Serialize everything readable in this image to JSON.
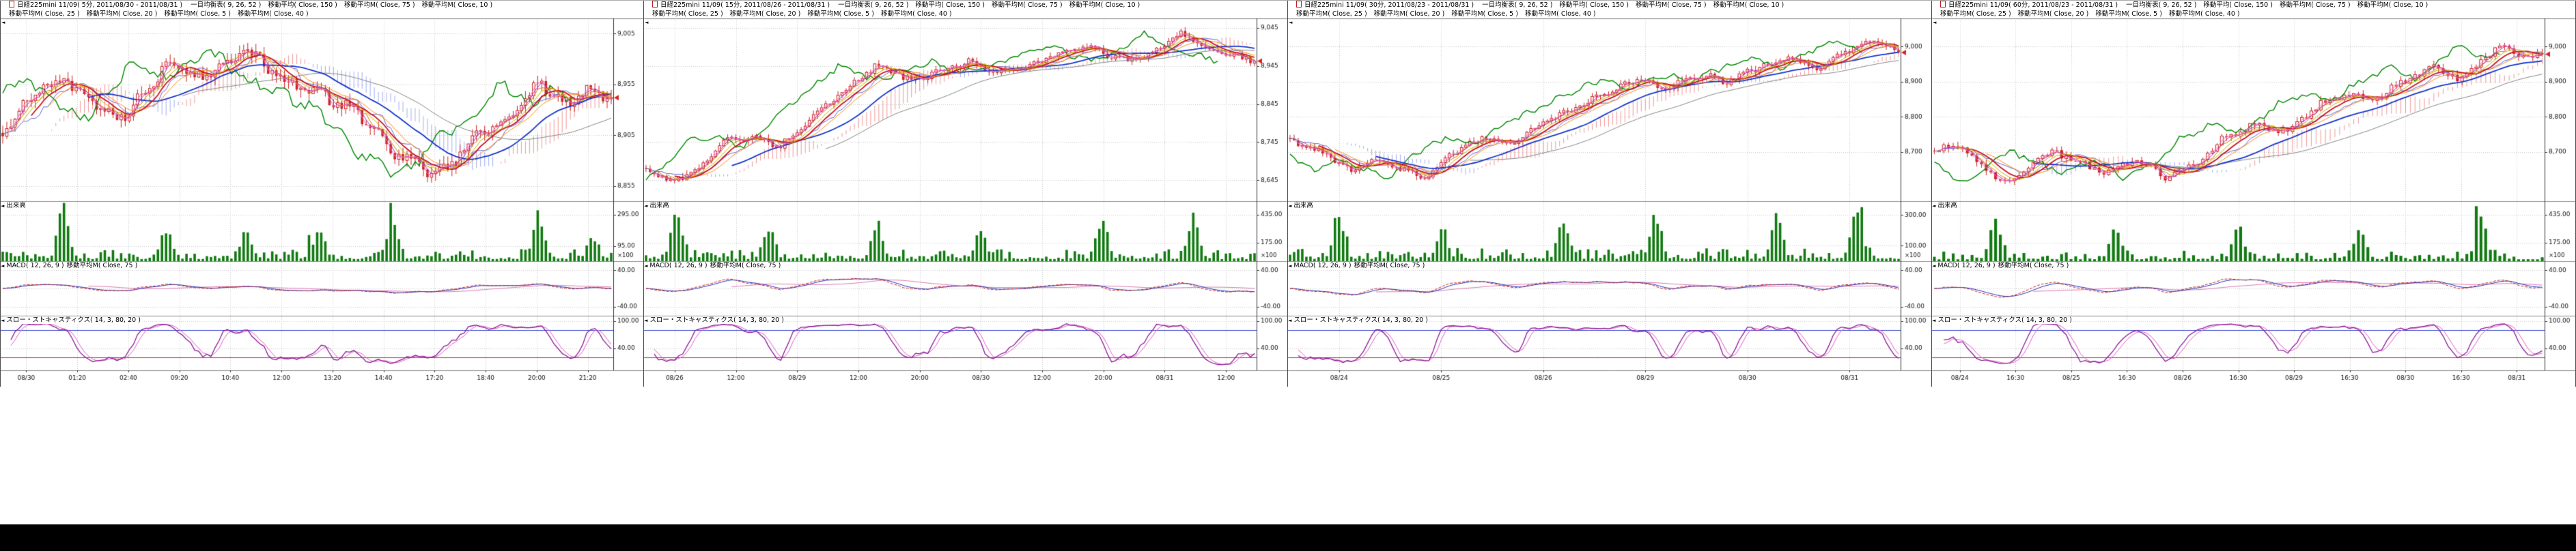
{
  "colors": {
    "up": "#cc2222",
    "down": "#cc2222",
    "up_fill": "#ffffff",
    "volume": "#117a11",
    "grid": "#c8c8c8",
    "axis": "#333333",
    "pane_border": "#8a8a8a",
    "cloud_up": "rgba(225,70,70,0.55)",
    "cloud_down": "rgba(90,110,225,0.55)",
    "chikou": "#008800",
    "tenkan": "#d08000",
    "kijun": "#6868d8",
    "ma": {
      "150": "#888888",
      "75": "#1535cc",
      "40": "#ff8c1a",
      "25": "#cc1122",
      "20": "#c8b400",
      "10": "#b030c0",
      "5": "#ff70b8"
    },
    "macd": "#cc2222",
    "macd_signal": "#2233bb",
    "macd_ma": "#dd7ab4",
    "stoch_k": "#8a1a9a",
    "stoch_d": "#e060c0",
    "stoch_upper": "#3344cc",
    "stoch_lower": "#cc3333",
    "marker": "#dd2222"
  },
  "panels": [
    {
      "title": "日経225mini 11/09( 5分, 2011/08/30 - 2011/08/31 )",
      "legend1": [
        "一目均衡表( 9, 26, 52 )",
        "移動平均( Close, 150 )",
        "移動平均M( Close, 75 )",
        "移動平均M( Close, 10 )"
      ],
      "legend2": [
        "移動平均M( Close, 25 )",
        "移動平均M( Close, 20 )",
        "移動平均M( Close, 5 )",
        "移動平均M( Close, 40 )"
      ],
      "volume_label": "出来高",
      "macd_label": "MACD( 12, 26, 9 )",
      "macd_label2": "移動平均M( Close, 75 )",
      "stoch_label": "スロー・ストキャスティクス( 14, 3, 80, 20 )"
    },
    {
      "title": "日経225mini 11/09( 15分, 2011/08/26 - 2011/08/31 )",
      "legend1": [
        "一目均衡表( 9, 26, 52 )",
        "移動平均( Close, 150 )",
        "移動平均M( Close, 75 )",
        "移動平均M( Close, 10 )"
      ],
      "legend2": [
        "移動平均M( Close, 25 )",
        "移動平均M( Close, 20 )",
        "移動平均M( Close, 5 )",
        "移動平均M( Close, 40 )"
      ],
      "volume_label": "出来高",
      "macd_label": "MACD( 12, 26, 9 )",
      "macd_label2": "移動平均M( Close, 75 )",
      "stoch_label": "スロー・ストキャスティクス( 14, 3, 80, 20 )"
    },
    {
      "title": "日経225mini 11/09( 30分, 2011/08/23 - 2011/08/31 )",
      "legend1": [
        "一目均衡表( 9, 26, 52 )",
        "移動平均( Close, 150 )",
        "移動平均M( Close, 75 )",
        "移動平均M( Close, 10 )"
      ],
      "legend2": [
        "移動平均M( Close, 25 )",
        "移動平均M( Close, 20 )",
        "移動平均M( Close, 5 )",
        "移動平均M( Close, 40 )"
      ],
      "volume_label": "出来高",
      "macd_label": "MACD( 12, 26, 9 )",
      "macd_label2": "移動平均M( Close, 75 )",
      "stoch_label": "スロー・ストキャスティクス( 14, 3, 80, 20 )"
    },
    {
      "title": "日経225mini 11/09( 60分, 2011/08/23 - 2011/08/31 )",
      "legend1": [
        "一目均衡表( 9, 26, 52 )",
        "移動平均( Close, 150 )",
        "移動平均M( Close, 75 )",
        "移動平均M( Close, 10 )"
      ],
      "legend2": [
        "移動平均M( Close, 25 )",
        "移動平均M( Close, 20 )",
        "移動平均M( Close, 5 )",
        "移動平均M( Close, 40 )"
      ],
      "volume_label": "出来高",
      "macd_label": "MACD( 12, 26, 9 )",
      "macd_label2": "移動平均M( Close, 75 )",
      "stoch_label": "スロー・ストキャスティクス( 14, 3, 80, 20 )"
    }
  ],
  "chart_data": [
    {
      "type": "candlestick",
      "timeframe": "5分",
      "candle_count": 150,
      "seed": 11,
      "wiggle": 9,
      "ylim": [
        8840,
        9020
      ],
      "y_ticks": [
        {
          "label": "9,005",
          "value": 9005
        },
        {
          "label": "8,955",
          "value": 8955
        },
        {
          "label": "8,905",
          "value": 8905
        },
        {
          "label": "8,855",
          "value": 8855
        }
      ],
      "price_anchors": [
        [
          0,
          8902
        ],
        [
          0.05,
          8948
        ],
        [
          0.1,
          8958
        ],
        [
          0.16,
          8930
        ],
        [
          0.2,
          8922
        ],
        [
          0.27,
          8975
        ],
        [
          0.33,
          8962
        ],
        [
          0.4,
          8988
        ],
        [
          0.46,
          8960
        ],
        [
          0.52,
          8945
        ],
        [
          0.58,
          8930
        ],
        [
          0.64,
          8888
        ],
        [
          0.7,
          8870
        ],
        [
          0.74,
          8878
        ],
        [
          0.78,
          8905
        ],
        [
          0.84,
          8925
        ],
        [
          0.88,
          8958
        ],
        [
          0.92,
          8935
        ],
        [
          0.96,
          8948
        ],
        [
          1,
          8942
        ]
      ],
      "last_close": 8942,
      "x_labels": [
        "08/30",
        "01:20",
        "02:40",
        "09:20",
        "10:40",
        "12:00",
        "13:20",
        "14:40",
        "17:20",
        "18:40",
        "20:00",
        "21:20"
      ],
      "volume": {
        "ylim": [
          0,
          380
        ],
        "base": 55,
        "unit": "×100",
        "ticks": [
          {
            "label": "295.00",
            "value": 295
          },
          {
            "label": "95.00",
            "value": 95
          }
        ],
        "spikes": [
          [
            0.1,
            300
          ],
          [
            0.27,
            160
          ],
          [
            0.4,
            140
          ],
          [
            0.52,
            180
          ],
          [
            0.64,
            200
          ],
          [
            0.88,
            260
          ],
          [
            0.97,
            120
          ]
        ]
      },
      "macd": {
        "ylim": [
          -60,
          60
        ],
        "ticks": [
          {
            "label": "40.00",
            "value": 40
          },
          {
            "label": "-40.00",
            "value": -40
          }
        ]
      },
      "stoch": {
        "ylim": [
          -8,
          112
        ],
        "upper": 80,
        "lower": 20,
        "ticks": [
          {
            "label": "100.00",
            "value": 100
          },
          {
            "label": "40.00",
            "value": 40
          }
        ]
      }
    },
    {
      "type": "candlestick",
      "timeframe": "15分",
      "candle_count": 150,
      "seed": 22,
      "wiggle": 13,
      "ylim": [
        8590,
        9070
      ],
      "y_ticks": [
        {
          "label": "9,045",
          "value": 9045
        },
        {
          "label": "8,945",
          "value": 8945
        },
        {
          "label": "8,845",
          "value": 8845
        },
        {
          "label": "8,745",
          "value": 8745
        },
        {
          "label": "8,645",
          "value": 8645
        }
      ],
      "price_anchors": [
        [
          0,
          8672
        ],
        [
          0.04,
          8640
        ],
        [
          0.08,
          8668
        ],
        [
          0.13,
          8745
        ],
        [
          0.18,
          8760
        ],
        [
          0.22,
          8735
        ],
        [
          0.28,
          8820
        ],
        [
          0.33,
          8885
        ],
        [
          0.38,
          8948
        ],
        [
          0.43,
          8910
        ],
        [
          0.48,
          8928
        ],
        [
          0.53,
          8955
        ],
        [
          0.58,
          8925
        ],
        [
          0.63,
          8948
        ],
        [
          0.68,
          8972
        ],
        [
          0.73,
          8998
        ],
        [
          0.78,
          8958
        ],
        [
          0.83,
          8975
        ],
        [
          0.88,
          9028
        ],
        [
          0.93,
          8985
        ],
        [
          1,
          8958
        ]
      ],
      "last_close": 8958,
      "x_labels": [
        "08/26",
        "12:00",
        "08/29",
        "12:00",
        "20:00",
        "08/30",
        "12:00",
        "20:00",
        "08/31",
        "12:00"
      ],
      "volume": {
        "ylim": [
          0,
          560
        ],
        "base": 80,
        "unit": "×100",
        "ticks": [
          {
            "label": "435.00",
            "value": 435
          },
          {
            "label": "175.00",
            "value": 175
          }
        ],
        "spikes": [
          [
            0.05,
            420
          ],
          [
            0.2,
            250
          ],
          [
            0.38,
            300
          ],
          [
            0.55,
            260
          ],
          [
            0.75,
            330
          ],
          [
            0.9,
            380
          ]
        ]
      },
      "macd": {
        "ylim": [
          -60,
          60
        ],
        "ticks": [
          {
            "label": "40.00",
            "value": 40
          },
          {
            "label": "-40.00",
            "value": -40
          }
        ]
      },
      "stoch": {
        "ylim": [
          -8,
          112
        ],
        "upper": 80,
        "lower": 20,
        "ticks": [
          {
            "label": "100.00",
            "value": 100
          },
          {
            "label": "40.00",
            "value": 40
          }
        ]
      }
    },
    {
      "type": "candlestick",
      "timeframe": "30分",
      "candle_count": 150,
      "seed": 33,
      "wiggle": 14,
      "ylim": [
        8560,
        9080
      ],
      "y_ticks": [
        {
          "label": "9,000",
          "value": 9000
        },
        {
          "label": "8,900",
          "value": 8900
        },
        {
          "label": "8,800",
          "value": 8800
        },
        {
          "label": "8,700",
          "value": 8700
        }
      ],
      "price_anchors": [
        [
          0,
          8730
        ],
        [
          0.05,
          8700
        ],
        [
          0.1,
          8645
        ],
        [
          0.14,
          8680
        ],
        [
          0.18,
          8655
        ],
        [
          0.22,
          8628
        ],
        [
          0.27,
          8700
        ],
        [
          0.32,
          8742
        ],
        [
          0.36,
          8720
        ],
        [
          0.42,
          8785
        ],
        [
          0.47,
          8828
        ],
        [
          0.52,
          8868
        ],
        [
          0.57,
          8905
        ],
        [
          0.62,
          8878
        ],
        [
          0.67,
          8922
        ],
        [
          0.72,
          8898
        ],
        [
          0.77,
          8942
        ],
        [
          0.82,
          8968
        ],
        [
          0.87,
          8938
        ],
        [
          0.92,
          8992
        ],
        [
          0.96,
          9012
        ],
        [
          1,
          8983
        ]
      ],
      "last_close": 8983,
      "x_labels": [
        "08/24",
        "08/25",
        "08/26",
        "08/29",
        "08/30",
        "08/31"
      ],
      "volume": {
        "ylim": [
          0,
          390
        ],
        "base": 60,
        "unit": "×100",
        "ticks": [
          {
            "label": "300.00",
            "value": 300
          },
          {
            "label": "100.00",
            "value": 100
          }
        ],
        "spikes": [
          [
            0.08,
            260
          ],
          [
            0.25,
            180
          ],
          [
            0.45,
            220
          ],
          [
            0.6,
            250
          ],
          [
            0.8,
            280
          ],
          [
            0.93,
            300
          ]
        ]
      },
      "macd": {
        "ylim": [
          -60,
          60
        ],
        "ticks": [
          {
            "label": "40.00",
            "value": 40
          },
          {
            "label": "-40.00",
            "value": -40
          }
        ]
      },
      "stoch": {
        "ylim": [
          -8,
          112
        ],
        "upper": 80,
        "lower": 20,
        "ticks": [
          {
            "label": "100.00",
            "value": 100
          },
          {
            "label": "40.00",
            "value": 40
          }
        ]
      }
    },
    {
      "type": "candlestick",
      "timeframe": "60分",
      "candle_count": 130,
      "seed": 44,
      "wiggle": 15,
      "ylim": [
        8560,
        9080
      ],
      "y_ticks": [
        {
          "label": "9,000",
          "value": 9000
        },
        {
          "label": "8,900",
          "value": 8900
        },
        {
          "label": "8,800",
          "value": 8800
        },
        {
          "label": "8,700",
          "value": 8700
        }
      ],
      "price_anchors": [
        [
          0,
          8700
        ],
        [
          0.04,
          8720
        ],
        [
          0.08,
          8655
        ],
        [
          0.12,
          8608
        ],
        [
          0.16,
          8665
        ],
        [
          0.2,
          8700
        ],
        [
          0.24,
          8668
        ],
        [
          0.28,
          8640
        ],
        [
          0.33,
          8680
        ],
        [
          0.38,
          8625
        ],
        [
          0.43,
          8668
        ],
        [
          0.48,
          8745
        ],
        [
          0.53,
          8782
        ],
        [
          0.58,
          8758
        ],
        [
          0.63,
          8832
        ],
        [
          0.68,
          8870
        ],
        [
          0.72,
          8845
        ],
        [
          0.77,
          8902
        ],
        [
          0.82,
          8942
        ],
        [
          0.86,
          8908
        ],
        [
          0.9,
          8962
        ],
        [
          0.94,
          9005
        ],
        [
          0.97,
          8968
        ],
        [
          1,
          8978
        ]
      ],
      "last_close": 8978,
      "x_labels": [
        "08/24",
        "16:30",
        "08/25",
        "16:30",
        "08/26",
        "16:30",
        "08/29",
        "16:30",
        "08/30",
        "16:30",
        "08/31"
      ],
      "volume": {
        "ylim": [
          0,
          560
        ],
        "base": 70,
        "unit": "×100",
        "ticks": [
          {
            "label": "435.00",
            "value": 435
          },
          {
            "label": "175.00",
            "value": 175
          }
        ],
        "spikes": [
          [
            0.1,
            380
          ],
          [
            0.3,
            250
          ],
          [
            0.5,
            300
          ],
          [
            0.7,
            280
          ],
          [
            0.9,
            400
          ]
        ]
      },
      "macd": {
        "ylim": [
          -60,
          60
        ],
        "ticks": [
          {
            "label": "40.00",
            "value": 40
          },
          {
            "label": "-40.00",
            "value": -40
          }
        ]
      },
      "stoch": {
        "ylim": [
          -8,
          112
        ],
        "upper": 80,
        "lower": 20,
        "ticks": [
          {
            "label": "100.00",
            "value": 100
          },
          {
            "label": "40.00",
            "value": 40
          }
        ]
      }
    }
  ]
}
